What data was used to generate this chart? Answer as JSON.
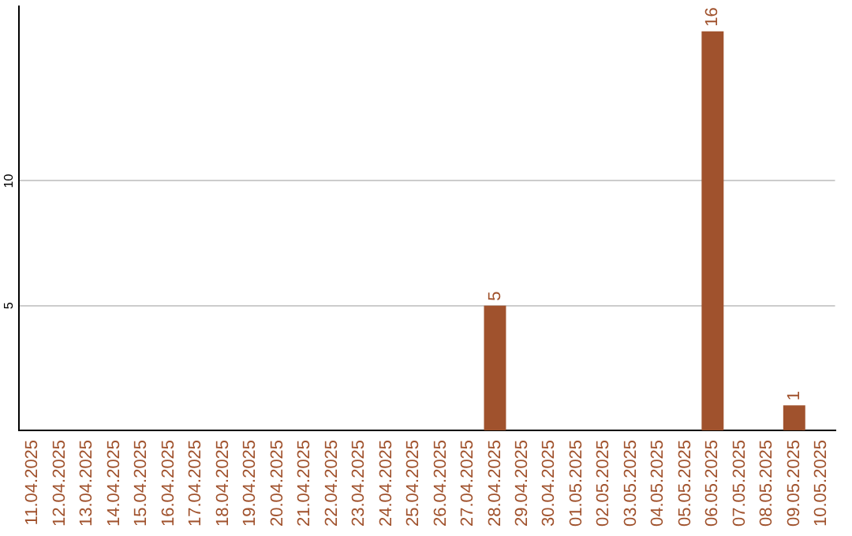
{
  "chart_data": {
    "type": "bar",
    "categories": [
      "11.04.2025",
      "12.04.2025",
      "13.04.2025",
      "14.04.2025",
      "15.04.2025",
      "16.04.2025",
      "17.04.2025",
      "18.04.2025",
      "19.04.2025",
      "20.04.2025",
      "21.04.2025",
      "22.04.2025",
      "23.04.2025",
      "24.04.2025",
      "25.04.2025",
      "26.04.2025",
      "27.04.2025",
      "28.04.2025",
      "29.04.2025",
      "30.04.2025",
      "01.05.2025",
      "02.05.2025",
      "03.05.2025",
      "04.05.2025",
      "05.05.2025",
      "06.05.2025",
      "07.05.2025",
      "08.05.2025",
      "09.05.2025",
      "10.05.2025"
    ],
    "values": [
      0,
      0,
      0,
      0,
      0,
      0,
      0,
      0,
      0,
      0,
      0,
      0,
      0,
      0,
      0,
      0,
      0,
      5,
      0,
      0,
      0,
      0,
      0,
      0,
      0,
      16,
      0,
      0,
      1,
      0
    ],
    "value_labels": [
      null,
      null,
      null,
      null,
      null,
      null,
      null,
      null,
      null,
      null,
      null,
      null,
      null,
      null,
      null,
      null,
      null,
      "5",
      null,
      null,
      null,
      null,
      null,
      null,
      null,
      "16",
      null,
      null,
      "1",
      null
    ],
    "color": "#a0522d",
    "ylim": [
      0,
      17
    ],
    "yticks": [
      5,
      10
    ],
    "grid": "y",
    "legend": false
  }
}
